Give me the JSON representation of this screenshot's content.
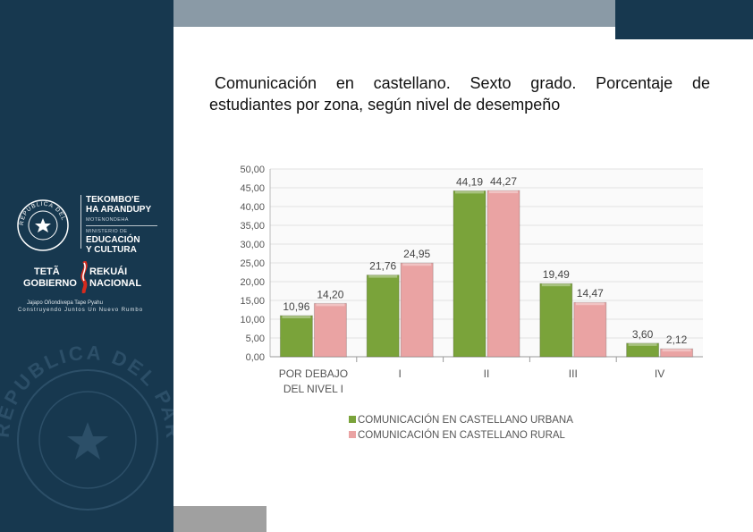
{
  "title": {
    "line1": "Comunicación en castellano. Sexto grado. Porcentaje de",
    "line2": "estudiantes por zona,  según nivel de desempeño"
  },
  "logos": {
    "ministry_line1": "TEKOMBO'E",
    "ministry_line2": "HA ARANDUPY",
    "ministry_sub": "MOTENONDEHA",
    "ministry_label": "MINISTERIO DE",
    "ministry_line3": "EDUCACIÓN",
    "ministry_line4": "Y CULTURA",
    "gov_line1": "TETÃ",
    "gov_line2": "GOBIERNO",
    "gov_line3": "REKUÁI",
    "gov_line4": "NACIONAL",
    "gov_slogan1": "Jajapo Oñondivepa Tape Pyahu",
    "gov_slogan2": "Construyendo Juntos Un Nuevo Rumbo",
    "seal_text": "REPUBLICA DEL PARAGUAY",
    "watermark_text": "REPUBLICA DEL PARAGUAY"
  },
  "colors": {
    "sidebar": "#17384f",
    "urban": "#7aa33a",
    "rural": "#eaa3a3"
  },
  "chart_data": {
    "type": "bar",
    "categories": [
      "POR DEBAJO|DEL NIVEL I",
      "I",
      "II",
      "III",
      "IV"
    ],
    "series": [
      {
        "name": "COMUNICACIÓN EN CASTELLANO URBANA",
        "values": [
          10.96,
          21.76,
          44.19,
          19.49,
          3.6
        ],
        "labels": [
          "10,96",
          "21,76",
          "44,19",
          "19,49",
          "3,60"
        ],
        "color": "#7aa33a"
      },
      {
        "name": "COMUNICACIÓN EN CASTELLANO RURAL",
        "values": [
          14.2,
          24.95,
          44.27,
          14.47,
          2.12
        ],
        "labels": [
          "14,20",
          "24,95",
          "44,27",
          "14,47",
          "2,12"
        ],
        "color": "#eaa3a3"
      }
    ],
    "yticks": [
      "0,00",
      "5,00",
      "10,00",
      "15,00",
      "20,00",
      "25,00",
      "30,00",
      "35,00",
      "40,00",
      "45,00",
      "50,00"
    ],
    "ylim": [
      0,
      50
    ],
    "grid": true,
    "legend": "bottom"
  }
}
